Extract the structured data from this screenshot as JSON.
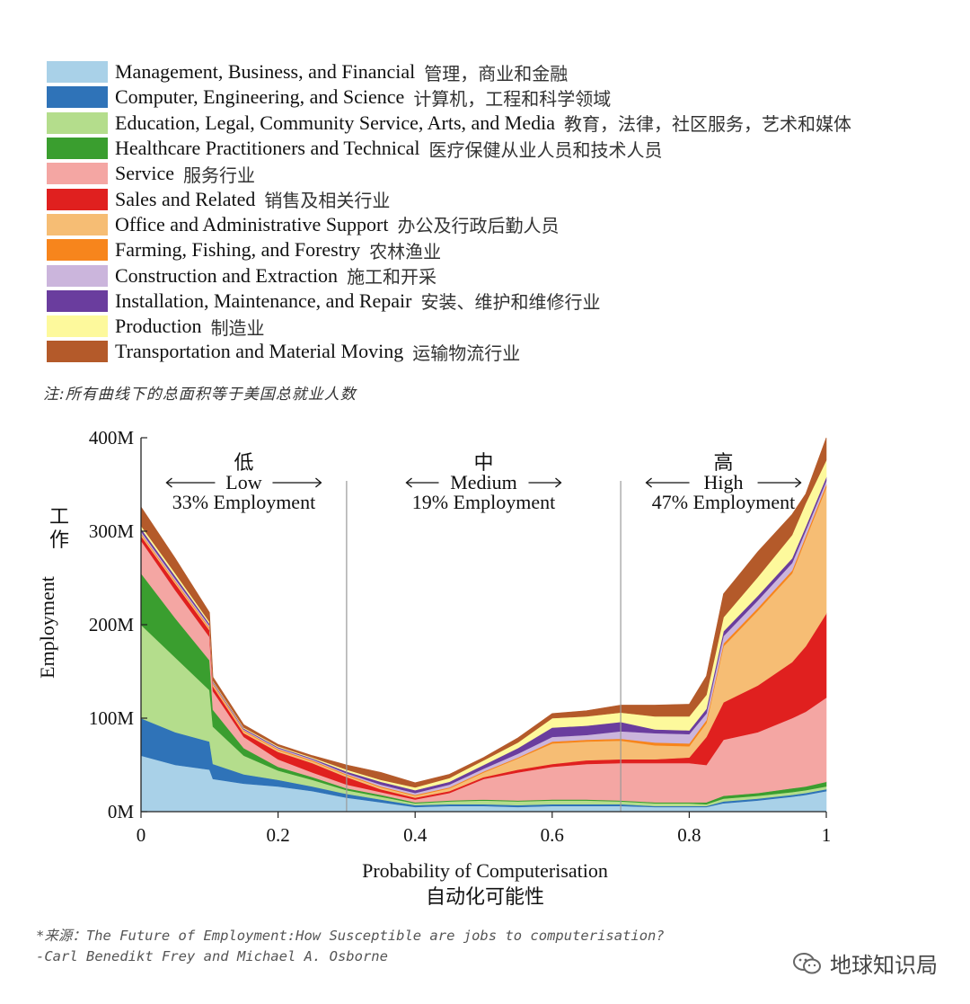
{
  "legend": [
    {
      "en": "Management, Business, and Financial",
      "zh": "管理，商业和金融",
      "color": "#a9d1e8"
    },
    {
      "en": "Computer, Engineering, and Science",
      "zh": "计算机，工程和科学领域",
      "color": "#2f73b8"
    },
    {
      "en": "Education, Legal, Community Service, Arts, and Media",
      "zh": "教育，法律，社区服务，艺术和媒体",
      "color": "#b4dd8c"
    },
    {
      "en": "Healthcare Practitioners and Technical",
      "zh": "医疗保健从业人员和技术人员",
      "color": "#3a9e2f"
    },
    {
      "en": "Service",
      "zh": "服务行业",
      "color": "#f4a6a3"
    },
    {
      "en": "Sales and Related",
      "zh": "销售及相关行业",
      "color": "#e0201f"
    },
    {
      "en": "Office and Administrative Support",
      "zh": "办公及行政后勤人员",
      "color": "#f6bd74"
    },
    {
      "en": "Farming, Fishing, and Forestry",
      "zh": "农林渔业",
      "color": "#f7851c"
    },
    {
      "en": "Construction and Extraction",
      "zh": "施工和开采",
      "color": "#cbb5dc"
    },
    {
      "en": "Installation, Maintenance, and Repair",
      "zh": "安装、维护和维修行业",
      "color": "#6a3d9e"
    },
    {
      "en": "Production",
      "zh": "制造业",
      "color": "#fdf99c"
    },
    {
      "en": "Transportation and Material Moving",
      "zh": "运输物流行业",
      "color": "#b45a2a"
    }
  ],
  "note": "注:所有曲线下的总面积等于美国总就业人数",
  "source": {
    "line1": "*来源：The Future of Employment:How Susceptible are jobs to computerisation?",
    "line2": "-Carl Benedikt Frey and Michael A. Osborne"
  },
  "watermark": "地球知识局",
  "chart_data": {
    "type": "area",
    "stacked": true,
    "xlabel": "Probability of Computerisation",
    "xlabel_zh": "自动化可能性",
    "ylabel": "Employment",
    "ylabel_zh": "工作",
    "xlim": [
      0,
      1
    ],
    "ylim": [
      0,
      400
    ],
    "x_ticks": [
      {
        "value": 0,
        "label": "0"
      },
      {
        "value": 0.2,
        "label": "0.2"
      },
      {
        "value": 0.4,
        "label": "0.4"
      },
      {
        "value": 0.6,
        "label": "0.6"
      },
      {
        "value": 0.8,
        "label": "0.8"
      },
      {
        "value": 1,
        "label": "1"
      }
    ],
    "y_ticks": [
      {
        "value": 0,
        "label": "0M"
      },
      {
        "value": 100,
        "label": "100M"
      },
      {
        "value": 200,
        "label": "200M"
      },
      {
        "value": 300,
        "label": "300M"
      },
      {
        "value": 400,
        "label": "400M"
      }
    ],
    "region_dividers": [
      0.3,
      0.7
    ],
    "regions": [
      {
        "zh": "低",
        "en": "Low",
        "share": "33% Employment",
        "from": 0,
        "to": 0.3
      },
      {
        "zh": "中",
        "en": "Medium",
        "share": "19% Employment",
        "from": 0.3,
        "to": 0.7
      },
      {
        "zh": "高",
        "en": "High",
        "share": "47% Employment",
        "from": 0.7,
        "to": 1
      }
    ],
    "x": [
      0,
      0.05,
      0.1,
      0.105,
      0.15,
      0.2,
      0.25,
      0.3,
      0.35,
      0.4,
      0.45,
      0.5,
      0.55,
      0.6,
      0.65,
      0.7,
      0.75,
      0.8,
      0.825,
      0.85,
      0.9,
      0.95,
      0.97,
      1.0
    ],
    "series": [
      {
        "name": "Management, Business, and Financial",
        "values": [
          60,
          50,
          45,
          35,
          30,
          27,
          22,
          15,
          10,
          5,
          6,
          6,
          5,
          6,
          6,
          6,
          5,
          5,
          5,
          9,
          12,
          16,
          18,
          22
        ]
      },
      {
        "name": "Computer, Engineering, and Science",
        "values": [
          40,
          35,
          30,
          16,
          10,
          7,
          5,
          4,
          3,
          2,
          2,
          2,
          2,
          2,
          2,
          2,
          1,
          1,
          1,
          2,
          2,
          2,
          2,
          2
        ]
      },
      {
        "name": "Education, Legal, Community Service, Arts, and Media",
        "values": [
          100,
          80,
          55,
          40,
          20,
          10,
          7,
          4,
          3,
          2,
          3,
          4,
          4,
          4,
          4,
          3,
          3,
          3,
          2,
          3,
          3,
          3,
          3,
          3
        ]
      },
      {
        "name": "Healthcare Practitioners and Technical",
        "values": [
          55,
          42,
          32,
          18,
          8,
          4,
          3,
          2,
          2,
          1,
          1,
          1,
          1,
          1,
          1,
          1,
          1,
          1,
          2,
          3,
          3,
          4,
          4,
          5
        ]
      },
      {
        "name": "Service",
        "values": [
          35,
          30,
          25,
          20,
          12,
          8,
          5,
          4,
          3,
          3,
          8,
          22,
          30,
          35,
          38,
          40,
          42,
          42,
          40,
          60,
          65,
          75,
          80,
          90
        ]
      },
      {
        "name": "Sales and Related",
        "values": [
          5,
          7,
          7,
          5,
          4,
          8,
          10,
          8,
          3,
          2,
          2,
          2,
          3,
          3,
          4,
          4,
          4,
          6,
          30,
          40,
          50,
          60,
          70,
          90
        ]
      },
      {
        "name": "Office and Administrative Support",
        "values": [
          2,
          2,
          2,
          2,
          2,
          2,
          2,
          2,
          2,
          2,
          3,
          5,
          12,
          22,
          20,
          20,
          15,
          12,
          15,
          60,
          80,
          95,
          115,
          135
        ]
      },
      {
        "name": "Farming, Fishing, and Forestry",
        "values": [
          1,
          1,
          1,
          1,
          1,
          1,
          1,
          1,
          1,
          1,
          1,
          1,
          1,
          2,
          2,
          2,
          3,
          3,
          3,
          3,
          3,
          3,
          3,
          3
        ]
      },
      {
        "name": "Construction and Extraction",
        "values": [
          2,
          2,
          2,
          1,
          1,
          1,
          1,
          1,
          2,
          2,
          3,
          3,
          4,
          5,
          5,
          8,
          10,
          10,
          7,
          8,
          8,
          8,
          6,
          4
        ]
      },
      {
        "name": "Installation, Maintenance, and Repair",
        "values": [
          3,
          3,
          2,
          1,
          1,
          1,
          1,
          2,
          3,
          3,
          3,
          4,
          6,
          10,
          10,
          10,
          4,
          4,
          5,
          5,
          5,
          5,
          4,
          4
        ]
      },
      {
        "name": "Production",
        "values": [
          3,
          3,
          2,
          1,
          1,
          1,
          1,
          2,
          2,
          3,
          4,
          5,
          6,
          10,
          10,
          10,
          14,
          15,
          15,
          15,
          20,
          25,
          25,
          18
        ]
      },
      {
        "name": "Transportation and Material Moving",
        "values": [
          20,
          16,
          10,
          4,
          3,
          2,
          2,
          5,
          8,
          5,
          4,
          3,
          5,
          5,
          6,
          8,
          12,
          13,
          20,
          25,
          27,
          22,
          10,
          24
        ]
      }
    ]
  }
}
